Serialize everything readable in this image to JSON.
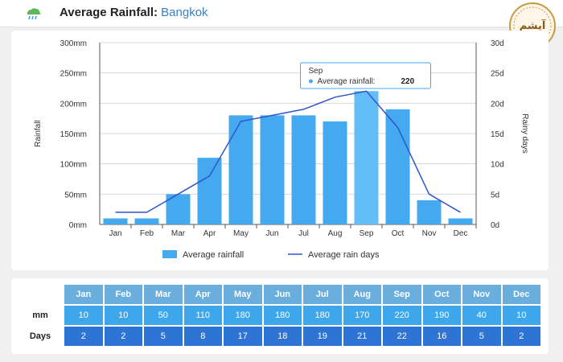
{
  "header": {
    "title_prefix": "Average Rainfall:",
    "city": "Bangkok",
    "logo_text": "آپشم"
  },
  "colors": {
    "bar": "#45a9f0",
    "bar_highlight": "#63bdf7",
    "line": "#2d56c9",
    "months_header": "#6aaedd",
    "mm_row": "#3ea7ec",
    "days_row": "#2e74d4"
  },
  "chart_data": {
    "type": "bar",
    "categories": [
      "Jan",
      "Feb",
      "Mar",
      "Apr",
      "May",
      "Jun",
      "Jul",
      "Aug",
      "Sep",
      "Oct",
      "Nov",
      "Dec"
    ],
    "series": [
      {
        "name": "Average rainfall",
        "type": "bar",
        "axis": "left",
        "values": [
          10,
          10,
          50,
          110,
          180,
          180,
          180,
          170,
          220,
          190,
          40,
          10
        ]
      },
      {
        "name": "Average rain days",
        "type": "line",
        "axis": "right",
        "values": [
          2,
          2,
          5,
          8,
          17,
          18,
          19,
          21,
          22,
          16,
          5,
          2
        ]
      }
    ],
    "ylabel": "Rainfall",
    "y2label": "Rainy days",
    "ylim": [
      0,
      300
    ],
    "y2lim": [
      0,
      30
    ],
    "yticks": [
      "0mm",
      "50mm",
      "100mm",
      "150mm",
      "200mm",
      "250mm",
      "300mm"
    ],
    "y2ticks": [
      "0d",
      "5d",
      "10d",
      "15d",
      "20d",
      "25d",
      "30d"
    ],
    "grid": true,
    "legend": "bottom-center",
    "tooltip": {
      "category": "Sep",
      "label": "Average rainfall:",
      "value": "220"
    }
  },
  "table": {
    "months": [
      "Jan",
      "Feb",
      "Mar",
      "Apr",
      "May",
      "Jun",
      "Jul",
      "Aug",
      "Sep",
      "Oct",
      "Nov",
      "Dec"
    ],
    "mm_label": "mm",
    "mm": [
      "10",
      "10",
      "50",
      "110",
      "180",
      "180",
      "180",
      "170",
      "220",
      "190",
      "40",
      "10"
    ],
    "days_label": "Days",
    "days": [
      "2",
      "2",
      "5",
      "8",
      "17",
      "18",
      "19",
      "21",
      "22",
      "16",
      "5",
      "2"
    ]
  }
}
